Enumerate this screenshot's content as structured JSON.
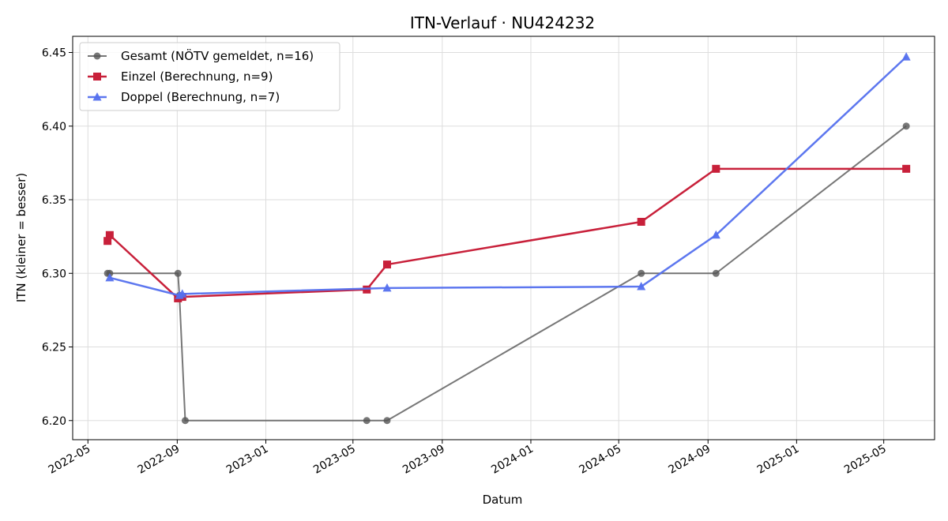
{
  "chart_data": {
    "type": "line",
    "title": "ITN-Verlauf · NU424232",
    "xlabel": "Datum",
    "ylabel": "ITN  (kleiner = besser)",
    "x_axis_type": "date",
    "xlim": [
      "2022-04-10",
      "2025-07-10"
    ],
    "ylim": [
      6.187,
      6.461
    ],
    "xticks": [
      "2022-05-01",
      "2022-09-01",
      "2023-01-01",
      "2023-05-01",
      "2023-09-01",
      "2024-01-01",
      "2024-05-01",
      "2024-09-01",
      "2025-01-01",
      "2025-05-01"
    ],
    "xtick_labels": [
      "2022-05",
      "2022-09",
      "2023-01",
      "2023-05",
      "2023-09",
      "2024-01",
      "2024-05",
      "2024-09",
      "2025-01",
      "2025-05"
    ],
    "yticks": [
      6.2,
      6.25,
      6.3,
      6.35,
      6.4,
      6.45
    ],
    "ytick_labels": [
      "6.20",
      "6.25",
      "6.30",
      "6.35",
      "6.40",
      "6.45"
    ],
    "grid": true,
    "legend_position": "top-left",
    "series": [
      {
        "name": "Gesamt (NÖTV gemeldet, n=16)",
        "color": "#555555",
        "marker": "circle",
        "points": [
          {
            "x": "2022-05-28",
            "y": 6.3
          },
          {
            "x": "2022-05-31",
            "y": 6.3
          },
          {
            "x": "2022-09-02",
            "y": 6.3
          },
          {
            "x": "2022-09-04",
            "y": 6.285
          },
          {
            "x": "2022-09-12",
            "y": 6.2
          },
          {
            "x": "2023-05-20",
            "y": 6.2
          },
          {
            "x": "2023-06-17",
            "y": 6.2
          },
          {
            "x": "2024-06-01",
            "y": 6.3
          },
          {
            "x": "2024-09-12",
            "y": 6.3
          },
          {
            "x": "2025-06-01",
            "y": 6.4
          }
        ]
      },
      {
        "name": "Einzel (Berechnung, n=9)",
        "color": "#c8203a",
        "marker": "square",
        "points": [
          {
            "x": "2022-05-28",
            "y": 6.322
          },
          {
            "x": "2022-05-31",
            "y": 6.326
          },
          {
            "x": "2022-09-02",
            "y": 6.283
          },
          {
            "x": "2022-09-08",
            "y": 6.284
          },
          {
            "x": "2023-05-20",
            "y": 6.289
          },
          {
            "x": "2023-06-17",
            "y": 6.306
          },
          {
            "x": "2024-06-01",
            "y": 6.335
          },
          {
            "x": "2024-09-12",
            "y": 6.371
          },
          {
            "x": "2025-06-01",
            "y": 6.371
          }
        ]
      },
      {
        "name": "Doppel (Berechnung, n=7)",
        "color": "#5470ee",
        "marker": "triangle",
        "points": [
          {
            "x": "2022-05-31",
            "y": 6.297
          },
          {
            "x": "2022-09-04",
            "y": 6.285
          },
          {
            "x": "2022-09-08",
            "y": 6.286
          },
          {
            "x": "2023-06-17",
            "y": 6.29
          },
          {
            "x": "2024-06-01",
            "y": 6.291
          },
          {
            "x": "2024-09-12",
            "y": 6.326
          },
          {
            "x": "2025-06-01",
            "y": 6.447
          }
        ]
      }
    ]
  }
}
